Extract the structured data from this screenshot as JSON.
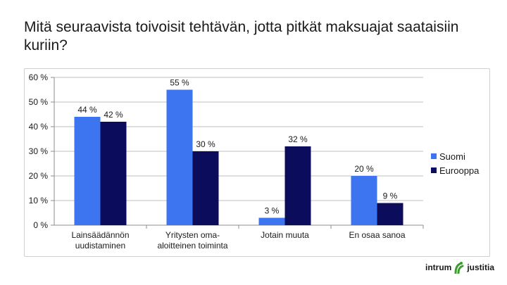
{
  "slide": {
    "title": "Mitä seuraavista toivoisit tehtävän, jotta pitkät maksuajat saataisiin kuriin?"
  },
  "logo": {
    "left_text": "intrum",
    "right_text": "justitia",
    "icon": "green-figure-logo"
  },
  "colors": {
    "suomi": "#3d74f0",
    "eurooppa": "#0c0c5c",
    "gridline": "#bfbfbf",
    "logo_green": "#3a9b2e"
  },
  "chart_data": {
    "type": "bar",
    "categories": [
      [
        "Lainsäädännön",
        "uudistaminen"
      ],
      [
        "Yritysten oma-",
        "aloitteinen toiminta"
      ],
      [
        "Jotain muuta"
      ],
      [
        "En osaa sanoa"
      ]
    ],
    "series": [
      {
        "name": "Suomi",
        "values": [
          44,
          55,
          3,
          20
        ],
        "labels": [
          "44 %",
          "55 %",
          "3 %",
          "20 %"
        ]
      },
      {
        "name": "Eurooppa",
        "values": [
          42,
          30,
          32,
          9
        ],
        "labels": [
          "42 %",
          "30 %",
          "32 %",
          "9 %"
        ]
      }
    ],
    "ylim": [
      0,
      60
    ],
    "yticks": [
      "0 %",
      "10 %",
      "20 %",
      "30 %",
      "40 %",
      "50 %",
      "60 %"
    ],
    "grid": true,
    "legend_position": "right"
  }
}
